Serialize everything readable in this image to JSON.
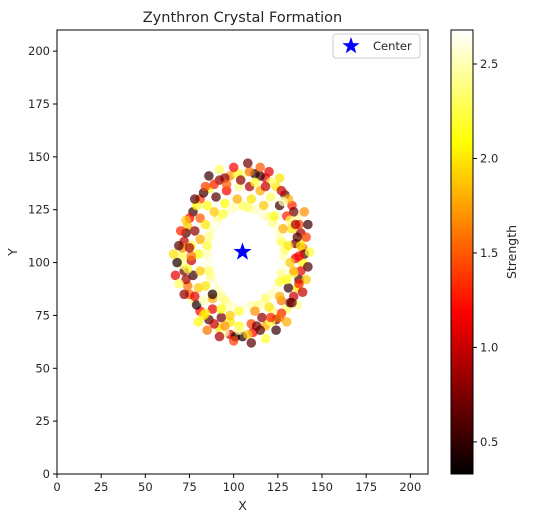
{
  "chart_data": {
    "type": "scatter",
    "title": "Zynthron Crystal Formation",
    "xlabel": "X",
    "ylabel": "Y",
    "xlim": [
      0,
      210
    ],
    "ylim": [
      0,
      210
    ],
    "xticks": [
      0,
      25,
      50,
      75,
      100,
      125,
      150,
      175,
      200
    ],
    "yticks": [
      0,
      25,
      50,
      75,
      100,
      125,
      150,
      175,
      200
    ],
    "grid": false,
    "legend_position": "top-right",
    "colormap": "hot",
    "colorbar": {
      "label": "Strength",
      "range": [
        0.33,
        2.68
      ],
      "ticks": [
        0.5,
        1.0,
        1.5,
        2.0,
        2.5
      ]
    },
    "center": {
      "label": "Center",
      "x": 105,
      "y": 105,
      "color": "#0000ff"
    },
    "series": [
      {
        "points": [
          [
            105,
            65,
            0.4
          ],
          [
            111,
            67,
            1.2
          ],
          [
            118,
            70,
            1.8
          ],
          [
            124,
            73,
            0.7
          ],
          [
            130,
            78,
            2.3
          ],
          [
            134,
            84,
            1.0
          ],
          [
            137,
            92,
            0.5
          ],
          [
            139,
            100,
            2.1
          ],
          [
            139,
            107,
            1.5
          ],
          [
            138,
            114,
            0.9
          ],
          [
            136,
            121,
            2.5
          ],
          [
            133,
            127,
            1.3
          ],
          [
            129,
            132,
            0.6
          ],
          [
            124,
            136,
            2.0
          ],
          [
            118,
            140,
            1.1
          ],
          [
            112,
            142,
            0.4
          ],
          [
            105,
            142,
            2.4
          ],
          [
            98,
            141,
            1.7
          ],
          [
            92,
            139,
            0.8
          ],
          [
            86,
            135,
            2.2
          ],
          [
            81,
            130,
            1.4
          ],
          [
            77,
            124,
            0.5
          ],
          [
            74,
            117,
            1.9
          ],
          [
            72,
            110,
            1.0
          ],
          [
            71,
            103,
            2.3
          ],
          [
            72,
            96,
            0.7
          ],
          [
            74,
            89,
            1.6
          ],
          [
            77,
            82,
            2.5
          ],
          [
            81,
            77,
            1.2
          ],
          [
            86,
            73,
            0.6
          ],
          [
            92,
            69,
            2.0
          ],
          [
            98,
            66,
            1.1
          ],
          [
            101,
            65,
            0.4
          ],
          [
            108,
            66,
            1.9
          ],
          [
            115,
            68,
            0.6
          ],
          [
            121,
            72,
            2.2
          ],
          [
            127,
            76,
            1.3
          ],
          [
            132,
            81,
            0.5
          ],
          [
            136,
            88,
            2.0
          ],
          [
            138,
            96,
            1.1
          ],
          [
            140,
            104,
            0.6
          ],
          [
            139,
            111,
            2.4
          ],
          [
            137,
            118,
            1.4
          ],
          [
            134,
            124,
            0.7
          ],
          [
            131,
            130,
            1.8
          ],
          [
            127,
            134,
            1.0
          ],
          [
            121,
            138,
            2.3
          ],
          [
            115,
            141,
            0.5
          ],
          [
            109,
            143,
            1.6
          ],
          [
            102,
            142,
            2.2
          ],
          [
            95,
            140,
            0.8
          ],
          [
            89,
            137,
            1.3
          ],
          [
            83,
            133,
            0.5
          ],
          [
            79,
            127,
            2.1
          ],
          [
            75,
            121,
            1.2
          ],
          [
            73,
            114,
            0.6
          ],
          [
            71,
            107,
            1.7
          ],
          [
            71,
            99,
            2.4
          ],
          [
            73,
            92,
            0.9
          ],
          [
            75,
            85,
            1.5
          ],
          [
            79,
            80,
            0.4
          ],
          [
            83,
            75,
            2.0
          ],
          [
            89,
            71,
            1.0
          ],
          [
            95,
            67,
            2.5
          ],
          [
            103,
            70,
            2.1
          ],
          [
            110,
            71,
            1.4
          ],
          [
            116,
            74,
            0.8
          ],
          [
            122,
            77,
            2.4
          ],
          [
            127,
            82,
            1.6
          ],
          [
            131,
            88,
            0.5
          ],
          [
            134,
            95,
            2.2
          ],
          [
            135,
            102,
            1.1
          ],
          [
            135,
            109,
            0.7
          ],
          [
            133,
            116,
            2.0
          ],
          [
            130,
            122,
            1.3
          ],
          [
            126,
            127,
            0.5
          ],
          [
            121,
            131,
            2.3
          ],
          [
            115,
            134,
            1.8
          ],
          [
            109,
            136,
            0.9
          ],
          [
            103,
            136,
            2.4
          ],
          [
            96,
            134,
            1.2
          ],
          [
            90,
            131,
            0.6
          ],
          [
            85,
            127,
            2.1
          ],
          [
            81,
            121,
            1.5
          ],
          [
            78,
            115,
            0.8
          ],
          [
            76,
            108,
            2.2
          ],
          [
            76,
            101,
            1.0
          ],
          [
            77,
            94,
            0.5
          ],
          [
            80,
            88,
            1.9
          ],
          [
            83,
            82,
            2.5
          ],
          [
            88,
            78,
            1.1
          ],
          [
            93,
            74,
            0.7
          ],
          [
            98,
            72,
            2.0
          ],
          [
            68,
            100,
            0.4
          ],
          [
            70,
            115,
            1.3
          ],
          [
            69,
            108,
            0.6
          ],
          [
            66,
            104,
            2.0
          ],
          [
            67,
            94,
            1.1
          ],
          [
            69,
            90,
            2.3
          ],
          [
            72,
            85,
            0.8
          ],
          [
            141,
            112,
            1.4
          ],
          [
            142,
            118,
            0.5
          ],
          [
            140,
            124,
            1.7
          ],
          [
            143,
            105,
            2.2
          ],
          [
            142,
            98,
            0.6
          ],
          [
            141,
            92,
            1.9
          ],
          [
            139,
            86,
            1.0
          ],
          [
            136,
            80,
            2.4
          ],
          [
            100,
            145,
            1.2
          ],
          [
            108,
            147,
            0.7
          ],
          [
            115,
            145,
            1.5
          ],
          [
            92,
            144,
            2.3
          ],
          [
            86,
            141,
            0.5
          ],
          [
            120,
            143,
            1.1
          ],
          [
            126,
            140,
            2.0
          ],
          [
            110,
            62,
            0.6
          ],
          [
            100,
            63,
            1.4
          ],
          [
            118,
            64,
            2.2
          ],
          [
            92,
            65,
            0.9
          ],
          [
            85,
            68,
            1.6
          ],
          [
            124,
            68,
            0.5
          ],
          [
            130,
            72,
            1.8
          ],
          [
            80,
            72,
            2.1
          ],
          [
            100,
            79,
            2.6
          ],
          [
            110,
            80,
            2.5
          ],
          [
            118,
            83,
            2.3
          ],
          [
            124,
            88,
            2.6
          ],
          [
            127,
            95,
            2.4
          ],
          [
            128,
            103,
            2.5
          ],
          [
            127,
            110,
            2.2
          ],
          [
            124,
            117,
            2.6
          ],
          [
            119,
            122,
            2.4
          ],
          [
            112,
            125,
            2.5
          ],
          [
            105,
            127,
            2.3
          ],
          [
            97,
            125,
            2.6
          ],
          [
            91,
            121,
            2.4
          ],
          [
            87,
            115,
            2.5
          ],
          [
            85,
            108,
            2.2
          ],
          [
            85,
            100,
            2.6
          ],
          [
            87,
            93,
            2.4
          ],
          [
            91,
            87,
            2.5
          ],
          [
            95,
            82,
            2.3
          ],
          [
            106,
            78,
            2.6
          ],
          [
            114,
            80,
            2.4
          ],
          [
            121,
            85,
            2.5
          ],
          [
            126,
            91,
            2.2
          ],
          [
            129,
            98,
            2.6
          ],
          [
            129,
            106,
            2.3
          ],
          [
            126,
            113,
            2.5
          ],
          [
            122,
            119,
            2.4
          ],
          [
            116,
            123,
            2.6
          ],
          [
            108,
            126,
            2.3
          ],
          [
            100,
            126,
            2.5
          ],
          [
            94,
            123,
            2.2
          ],
          [
            89,
            118,
            2.6
          ],
          [
            86,
            112,
            2.4
          ],
          [
            85,
            104,
            2.5
          ],
          [
            86,
            96,
            2.3
          ],
          [
            89,
            90,
            2.6
          ],
          [
            93,
            84,
            2.4
          ],
          [
            97,
            80,
            2.5
          ],
          [
            103,
            77,
            2.2
          ],
          [
            112,
            77,
            1.7
          ],
          [
            120,
            79,
            2.0
          ],
          [
            126,
            84,
            1.8
          ],
          [
            130,
            92,
            2.1
          ],
          [
            132,
            100,
            1.9
          ],
          [
            131,
            108,
            2.0
          ],
          [
            128,
            116,
            1.8
          ],
          [
            123,
            122,
            2.1
          ],
          [
            117,
            127,
            1.9
          ],
          [
            110,
            130,
            2.0
          ],
          [
            102,
            130,
            1.8
          ],
          [
            95,
            128,
            2.1
          ],
          [
            89,
            124,
            1.9
          ],
          [
            84,
            118,
            2.0
          ],
          [
            81,
            111,
            1.8
          ],
          [
            80,
            104,
            2.1
          ],
          [
            81,
            96,
            1.9
          ],
          [
            84,
            89,
            2.0
          ],
          [
            88,
            83,
            1.8
          ],
          [
            93,
            78,
            2.1
          ],
          [
            98,
            75,
            1.9
          ],
          [
            88,
            85,
            0.4
          ],
          [
            76,
            103,
            1.6
          ],
          [
            74,
            97,
            2.2
          ],
          [
            75,
            107,
            0.9
          ],
          [
            137,
            103,
            1.2
          ],
          [
            136,
            112,
            0.6
          ],
          [
            134,
            96,
            1.8
          ],
          [
            132,
            120,
            2.3
          ],
          [
            96,
            137,
            1.5
          ],
          [
            104,
            139,
            0.8
          ],
          [
            112,
            138,
            2.2
          ],
          [
            118,
            136,
            1.0
          ],
          [
            95,
            70,
            1.7
          ],
          [
            103,
            68,
            2.4
          ],
          [
            113,
            70,
            0.7
          ],
          [
            121,
            74,
            1.3
          ],
          [
            84,
            76,
            2.0
          ],
          [
            78,
            84,
            1.1
          ],
          [
            73,
            120,
            1.9
          ],
          [
            78,
            130,
            0.6
          ],
          [
            84,
            136,
            1.4
          ],
          [
            128,
            129,
            2.5
          ],
          [
            135,
            118,
            0.9
          ],
          [
            138,
            108,
            2.0
          ],
          [
            137,
            90,
            1.3
          ],
          [
            133,
            81,
            0.7
          ],
          [
            126,
            74,
            1.6
          ]
        ]
      }
    ]
  }
}
